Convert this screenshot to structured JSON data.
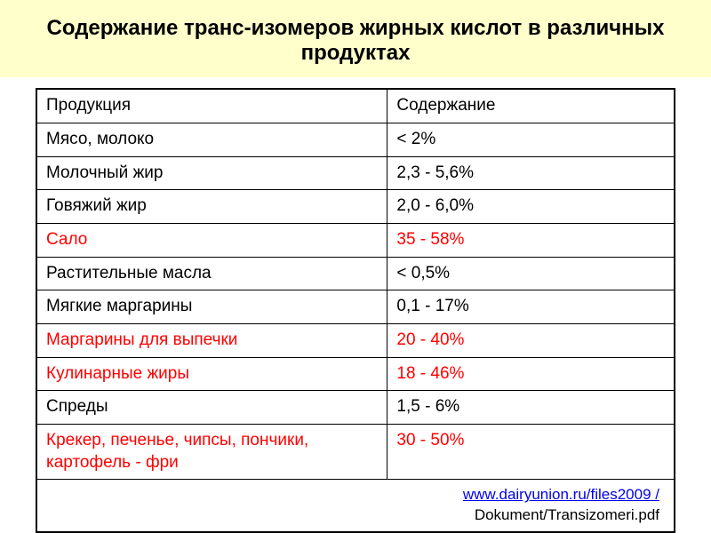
{
  "title": "Содержание транс-изомеров жирных кислот в различных продуктах",
  "table": {
    "type": "table",
    "columns": [
      "Продукция",
      "Содержание"
    ],
    "column_widths_pct": [
      55,
      45
    ],
    "header_fontsize": 19,
    "cell_fontsize": 19,
    "border_color": "#000000",
    "text_color": "#000000",
    "highlight_color": "#ff0000",
    "rows": [
      {
        "product": "Мясо, молоко",
        "content": "< 2%",
        "highlight": false
      },
      {
        "product": "Молочный жир",
        "content": "2,3 - 5,6%",
        "highlight": false
      },
      {
        "product": "Говяжий жир",
        "content": "2,0 - 6,0%",
        "highlight": false
      },
      {
        "product": "Сало",
        "content": "35  -  58%",
        "highlight": true
      },
      {
        "product": "Растительные масла",
        "content": "< 0,5%",
        "highlight": false
      },
      {
        "product": "Мягкие маргарины",
        "content": "0,1 -  17%",
        "highlight": false
      },
      {
        "product": "Маргарины для выпечки",
        "content": "20  -  40%",
        "highlight": true
      },
      {
        "product": "Кулинарные жиры",
        "content": "18  -  46%",
        "highlight": true
      },
      {
        "product": "Спреды",
        "content": "1,5 - 6%",
        "highlight": false
      },
      {
        "product": "Крекер, печенье, чипсы, пончики, картофель - фри",
        "content": "30  -  50%",
        "highlight": true
      }
    ],
    "source": {
      "link_text": "www.dairyunion.ru/files2009 /",
      "path_text": "Dokument/Transizomeri.pdf",
      "link_color": "#0000ee"
    }
  },
  "colors": {
    "title_background": "#ffffcc",
    "page_background": "#ffffff"
  },
  "typography": {
    "title_fontsize": 24,
    "title_weight": "bold",
    "font_family": "Arial"
  }
}
